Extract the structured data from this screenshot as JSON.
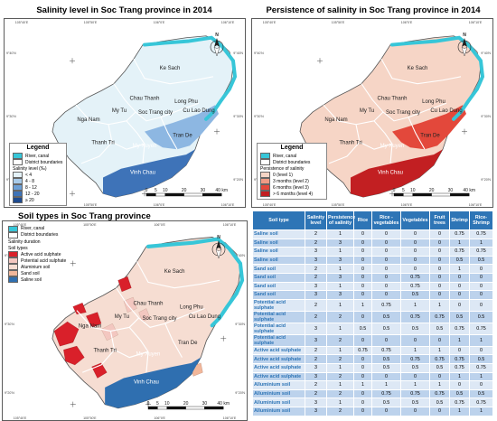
{
  "maps": [
    {
      "title": "Salinity level in Soc Trang province in 2014",
      "legend_title": "Legend",
      "legend_items": [
        {
          "label": "River, canal",
          "color": "#37c6d8"
        },
        {
          "label": "District boundaries",
          "color": "#ffffff"
        }
      ],
      "sub_title": "Salinity level (‰)",
      "sub_items": [
        {
          "label": "< 4",
          "color": "#e4f2f8"
        },
        {
          "label": "4 - 8",
          "color": "#a8cbea"
        },
        {
          "label": "8 - 12",
          "color": "#6c9fd6"
        },
        {
          "label": "12 - 20",
          "color": "#3e73b8"
        },
        {
          "label": "≥ 20",
          "color": "#1d4a8f"
        }
      ],
      "fill_main": "#e4f2f8",
      "fill_mid": "#8db7e2",
      "fill_south": "#3e73b8"
    },
    {
      "title": "Persistence of salinity in Soc Trang province in 2014",
      "legend_title": "Legend",
      "legend_items": [
        {
          "label": "River, canal",
          "color": "#37c6d8"
        },
        {
          "label": "District boundaries",
          "color": "#ffffff"
        }
      ],
      "sub_title": "Persistence of salinity",
      "sub_items": [
        {
          "label": "0 (level 1)",
          "color": "#f6d5c6"
        },
        {
          "label": "3 months (level 2)",
          "color": "#ef9b84"
        },
        {
          "label": "6 months (level 3)",
          "color": "#e3483b"
        },
        {
          "label": "> 6 months (level 4)",
          "color": "#c21f22"
        }
      ],
      "fill_main": "#f6d5c6",
      "fill_mid": "#e3483b",
      "fill_south": "#c21f22"
    },
    {
      "title": "Soil types in Soc Trang province",
      "legend_title": "",
      "legend_items": [
        {
          "label": "River, canal",
          "color": "#37c6d8"
        },
        {
          "label": "District boundaries",
          "color": "#ffffff"
        }
      ],
      "extra_label": "Salinity duration",
      "sub_title": "Soil types",
      "sub_items": [
        {
          "label": "Active acid sulphate",
          "color": "#d9202a"
        },
        {
          "label": "Potential acid sulphate",
          "color": "#f3c7c0"
        },
        {
          "label": "Aluminium soil",
          "color": "#f6ddd2"
        },
        {
          "label": "Sand soil",
          "color": "#f2b79a"
        },
        {
          "label": "Saline soil",
          "color": "#2f6fb0"
        }
      ],
      "fill_main": "#f6ddd2",
      "fill_mid": "#f6ddd2",
      "fill_south": "#2f6fb0"
    }
  ],
  "districts": [
    "Ke Sach",
    "Chau Thanh",
    "Long Phu",
    "My Tu",
    "Soc Trang city",
    "Cu Lao Dung",
    "Nga Nam",
    "Thanh Tri",
    "My Xuyen",
    "Tran De",
    "Vinh Chau"
  ],
  "north_label": "N",
  "scale": {
    "ticks": [
      "0",
      "5",
      "10",
      "20",
      "30",
      "40 km"
    ]
  },
  "lon_labels": [
    "105°40'E",
    "105°50'E",
    "106°0'E",
    "106°10'E"
  ],
  "lat_labels": [
    "9°40'N",
    "9°30'N",
    "9°20'N"
  ],
  "table": {
    "headers": [
      "Soil type",
      "Salinity level",
      "Persistence of salinity",
      "Rice",
      "Rice - vegetables",
      "Vegetables",
      "Fruit trees",
      "Shrimp",
      "Rice-Shrimp"
    ],
    "rows": [
      [
        "Saline soil",
        "2",
        "1",
        "0",
        "0",
        "0",
        "0",
        "0.75",
        "0.75"
      ],
      [
        "Saline soil",
        "2",
        "3",
        "0",
        "0",
        "0",
        "0",
        "1",
        "1"
      ],
      [
        "Saline soil",
        "3",
        "1",
        "0",
        "0",
        "0",
        "0",
        "0.75",
        "0.75"
      ],
      [
        "Saline soil",
        "3",
        "3",
        "0",
        "0",
        "0",
        "0",
        "0.5",
        "0.5"
      ],
      [
        "Sand soil",
        "2",
        "1",
        "0",
        "0",
        "0",
        "0",
        "1",
        "0"
      ],
      [
        "Sand soil",
        "2",
        "3",
        "0",
        "0",
        "0.75",
        "0",
        "0",
        "0"
      ],
      [
        "Sand soil",
        "3",
        "1",
        "0",
        "0",
        "0.75",
        "0",
        "0",
        "0"
      ],
      [
        "Sand soil",
        "3",
        "3",
        "0",
        "0",
        "0.5",
        "0",
        "0",
        "0"
      ],
      [
        "Potential acid sulphate",
        "2",
        "1",
        "1",
        "0.75",
        "1",
        "1",
        "0",
        "0"
      ],
      [
        "Potential acid sulphate",
        "2",
        "2",
        "0",
        "0.5",
        "0.75",
        "0.75",
        "0.5",
        "0.5"
      ],
      [
        "Potential acid sulphate",
        "3",
        "1",
        "0.5",
        "0.5",
        "0.5",
        "0.5",
        "0.75",
        "0.75"
      ],
      [
        "Potential acid sulphate",
        "3",
        "2",
        "0",
        "0",
        "0",
        "0",
        "1",
        "1"
      ],
      [
        "Active acid sulphate",
        "2",
        "1",
        "0.75",
        "0.75",
        "1",
        "1",
        "0",
        "0"
      ],
      [
        "Active acid sulphate",
        "2",
        "2",
        "0",
        "0.5",
        "0.75",
        "0.75",
        "0.75",
        "0.5"
      ],
      [
        "Active acid sulphate",
        "3",
        "1",
        "0",
        "0.5",
        "0.5",
        "0.5",
        "0.75",
        "0.75"
      ],
      [
        "Active acid sulphate",
        "3",
        "2",
        "0",
        "0",
        "0",
        "0",
        "1",
        "1"
      ],
      [
        "Alluminium soil",
        "2",
        "1",
        "1",
        "1",
        "1",
        "1",
        "0",
        "0"
      ],
      [
        "Alluminium soil",
        "2",
        "2",
        "0",
        "0.75",
        "0.75",
        "0.75",
        "0.5",
        "0.5"
      ],
      [
        "Alluminium soil",
        "3",
        "1",
        "0",
        "0.5",
        "0.5",
        "0.5",
        "0.75",
        "0.75"
      ],
      [
        "Alluminium soil",
        "3",
        "2",
        "0",
        "0",
        "0",
        "0",
        "1",
        "1"
      ]
    ]
  }
}
